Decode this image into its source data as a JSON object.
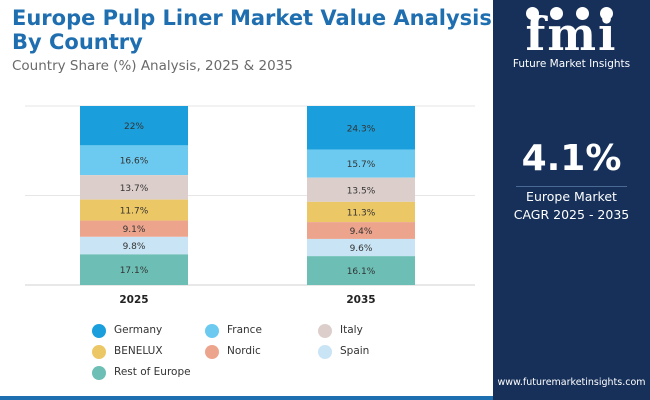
{
  "header": {
    "title": "Europe Pulp Liner Market Value Analysis By Country",
    "subtitle": "Country Share (%) Analysis, 2025 & 2035"
  },
  "sidebar": {
    "logo_text": "fmi",
    "logo_sub": "Future Market Insights",
    "kpi_value": "4.1%",
    "kpi_label_line1": "Europe Market",
    "kpi_label_line2": "CAGR 2025 - 2035",
    "website": "www.futuremarketinsights.com",
    "background_color": "#16305a"
  },
  "chart_data": {
    "type": "bar",
    "stacked": true,
    "orientation": "vertical",
    "categories": [
      "2025",
      "2035"
    ],
    "series": [
      {
        "name": "Germany",
        "color": "#1a9fdc",
        "values": [
          22,
          24.3
        ],
        "labels": [
          "22%",
          "24.3%"
        ]
      },
      {
        "name": "France",
        "color": "#6ccaf0",
        "values": [
          16.6,
          15.7
        ],
        "labels": [
          "16.6%",
          "15.7%"
        ]
      },
      {
        "name": "Italy",
        "color": "#dccfcb",
        "values": [
          13.7,
          13.5
        ],
        "labels": [
          "13.7%",
          "13.5%"
        ]
      },
      {
        "name": "BENELUX",
        "color": "#ecc765",
        "values": [
          11.7,
          11.3
        ],
        "labels": [
          "11.7%",
          "11.3%"
        ]
      },
      {
        "name": "Nordic",
        "color": "#eda48d",
        "values": [
          9.1,
          9.4
        ],
        "labels": [
          "9.1%",
          "9.4%"
        ]
      },
      {
        "name": "Spain",
        "color": "#c9e4f4",
        "values": [
          9.8,
          9.6
        ],
        "labels": [
          "9.8%",
          "9.6%"
        ]
      },
      {
        "name": "Rest of Europe",
        "color": "#6dbfb6",
        "values": [
          17.1,
          16.1
        ],
        "labels": [
          "17.1%",
          "16.1%"
        ]
      }
    ],
    "ylim": [
      0,
      100
    ],
    "grid": true,
    "legend_position": "bottom"
  }
}
